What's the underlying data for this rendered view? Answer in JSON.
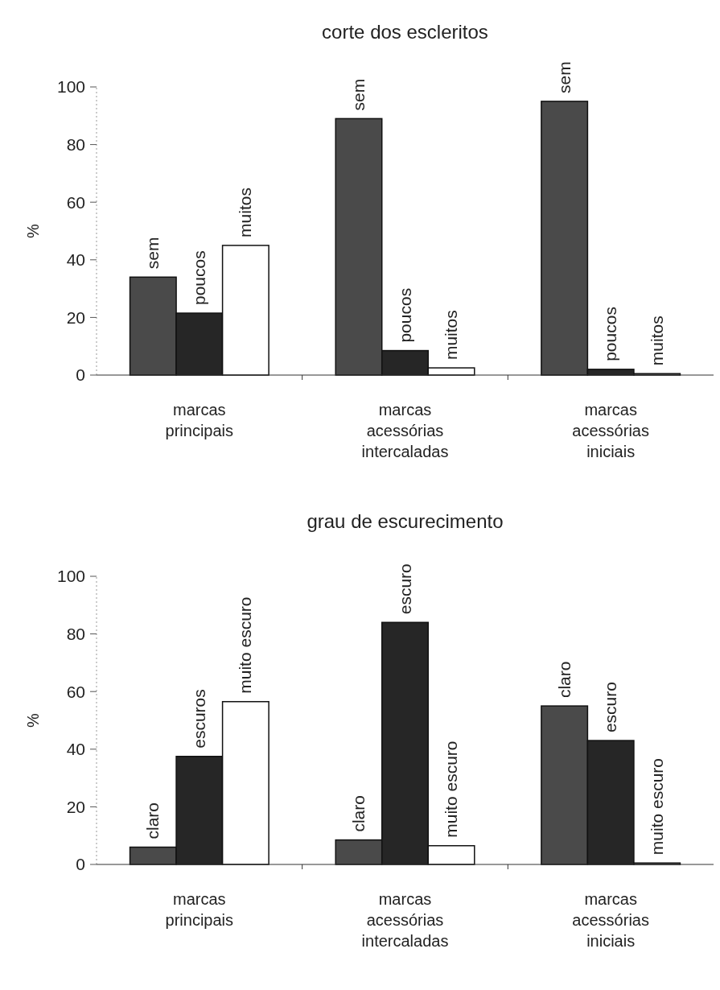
{
  "chart_data": [
    {
      "type": "bar",
      "title": "corte dos escleritos",
      "ylabel": "%",
      "categories": [
        "marcas principais",
        "marcas acessórias intercaladas",
        "marcas acessórias iniciais"
      ],
      "ylim": [
        0,
        100
      ],
      "yticks": [
        0,
        20,
        40,
        60,
        80,
        100
      ],
      "grid": false,
      "series": [
        {
          "color": "#4a4a4a",
          "values": [
            34,
            89,
            95
          ],
          "value_labels": [
            "sem",
            "sem",
            "sem"
          ]
        },
        {
          "color": "#262626",
          "values": [
            21.5,
            8.5,
            2
          ],
          "value_labels": [
            "poucos",
            "poucos",
            "poucos"
          ]
        },
        {
          "color": "#ffffff",
          "values": [
            45,
            2.5,
            0.5
          ],
          "value_labels": [
            "muitos",
            "muitos",
            "muitos"
          ]
        }
      ]
    },
    {
      "type": "bar",
      "title": "grau de escurecimento",
      "ylabel": "%",
      "categories": [
        "marcas principais",
        "marcas acessórias intercaladas",
        "marcas acessórias iniciais"
      ],
      "ylim": [
        0,
        100
      ],
      "yticks": [
        0,
        20,
        40,
        60,
        80,
        100
      ],
      "grid": false,
      "series": [
        {
          "color": "#4a4a4a",
          "values": [
            6,
            8.5,
            55
          ],
          "value_labels": [
            "claro",
            "claro",
            "claro"
          ]
        },
        {
          "color": "#262626",
          "values": [
            37.5,
            84,
            43
          ],
          "value_labels": [
            "escuros",
            "escuro",
            "escuro"
          ]
        },
        {
          "color": "#ffffff",
          "values": [
            56.5,
            6.5,
            0.5
          ],
          "value_labels": [
            "muito escuro",
            "muito escuro",
            "muito escuro"
          ]
        }
      ]
    }
  ]
}
